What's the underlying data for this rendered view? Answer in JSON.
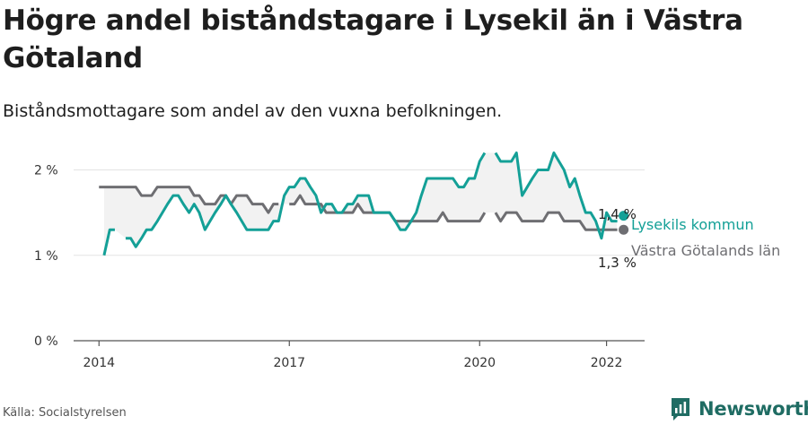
{
  "title": "Högre andel biståndstagare i Lysekil än i Västra Götaland",
  "subtitle": "Biståndsmottagare som andel av den vuxna befolkningen.",
  "source": "Källa: Socialstyrelsen",
  "brand": {
    "name": "Newsworthy",
    "color": "#1f6c63"
  },
  "chart_data": {
    "type": "line",
    "x_ticks": [
      {
        "x": 2014.0,
        "label": "2014"
      },
      {
        "x": 2017.0,
        "label": "2017"
      },
      {
        "x": 2020.0,
        "label": "2020"
      },
      {
        "x": 2022.0,
        "label": "2022"
      }
    ],
    "y_ticks": [
      {
        "y": 0,
        "label": "0 %"
      },
      {
        "y": 1,
        "label": "1 %"
      },
      {
        "y": 2,
        "label": "2 %"
      }
    ],
    "xlim": [
      2013.6,
      2022.6
    ],
    "ylim": [
      0,
      2.1
    ],
    "grid": true,
    "shade_between_series": true,
    "series": [
      {
        "name": "Lysekils kommun",
        "color": "#14a097",
        "end_label": "1,4 %",
        "segments": [
          [
            [
              2014.08,
              1.0
            ],
            [
              2014.17,
              1.3
            ],
            [
              2014.25,
              1.3
            ]
          ],
          [
            [
              2014.42,
              1.2
            ],
            [
              2014.5,
              1.2
            ],
            [
              2014.58,
              1.1
            ],
            [
              2014.67,
              1.2
            ],
            [
              2014.75,
              1.3
            ],
            [
              2014.83,
              1.3
            ],
            [
              2014.92,
              1.4
            ],
            [
              2015.0,
              1.5
            ],
            [
              2015.08,
              1.6
            ],
            [
              2015.17,
              1.7
            ],
            [
              2015.25,
              1.7
            ],
            [
              2015.33,
              1.6
            ],
            [
              2015.42,
              1.5
            ],
            [
              2015.5,
              1.6
            ],
            [
              2015.58,
              1.5
            ],
            [
              2015.67,
              1.3
            ],
            [
              2015.75,
              1.4
            ],
            [
              2015.83,
              1.5
            ],
            [
              2015.92,
              1.6
            ],
            [
              2016.0,
              1.7
            ],
            [
              2016.08,
              1.6
            ],
            [
              2016.17,
              1.5
            ],
            [
              2016.25,
              1.4
            ],
            [
              2016.33,
              1.3
            ],
            [
              2016.42,
              1.3
            ],
            [
              2016.5,
              1.3
            ],
            [
              2016.58,
              1.3
            ],
            [
              2016.67,
              1.3
            ],
            [
              2016.75,
              1.4
            ],
            [
              2016.83,
              1.4
            ],
            [
              2016.92,
              1.7
            ],
            [
              2017.0,
              1.8
            ],
            [
              2017.08,
              1.8
            ],
            [
              2017.17,
              1.9
            ],
            [
              2017.25,
              1.9
            ],
            [
              2017.33,
              1.8
            ],
            [
              2017.42,
              1.7
            ],
            [
              2017.5,
              1.5
            ],
            [
              2017.58,
              1.6
            ],
            [
              2017.67,
              1.6
            ],
            [
              2017.75,
              1.5
            ],
            [
              2017.83,
              1.5
            ],
            [
              2017.92,
              1.6
            ],
            [
              2018.0,
              1.6
            ],
            [
              2018.08,
              1.7
            ],
            [
              2018.17,
              1.7
            ],
            [
              2018.25,
              1.7
            ],
            [
              2018.33,
              1.5
            ],
            [
              2018.42,
              1.5
            ],
            [
              2018.5,
              1.5
            ],
            [
              2018.58,
              1.5
            ],
            [
              2018.67,
              1.4
            ],
            [
              2018.75,
              1.3
            ],
            [
              2018.83,
              1.3
            ],
            [
              2018.92,
              1.4
            ],
            [
              2019.0,
              1.5
            ],
            [
              2019.08,
              1.7
            ],
            [
              2019.17,
              1.9
            ],
            [
              2019.25,
              1.9
            ],
            [
              2019.33,
              1.9
            ],
            [
              2019.42,
              1.9
            ],
            [
              2019.5,
              1.9
            ],
            [
              2019.58,
              1.9
            ],
            [
              2019.67,
              1.8
            ],
            [
              2019.75,
              1.8
            ],
            [
              2019.83,
              1.9
            ],
            [
              2019.92,
              1.9
            ],
            [
              2020.0,
              2.1
            ],
            [
              2020.08,
              2.2
            ]
          ],
          [
            [
              2020.25,
              2.2
            ],
            [
              2020.33,
              2.1
            ],
            [
              2020.42,
              2.1
            ],
            [
              2020.5,
              2.1
            ],
            [
              2020.58,
              2.2
            ],
            [
              2020.67,
              1.7
            ],
            [
              2020.75,
              1.8
            ],
            [
              2020.83,
              1.9
            ],
            [
              2020.92,
              2.0
            ],
            [
              2021.0,
              2.0
            ],
            [
              2021.08,
              2.0
            ],
            [
              2021.17,
              2.2
            ],
            [
              2021.25,
              2.1
            ],
            [
              2021.33,
              2.0
            ],
            [
              2021.42,
              1.8
            ],
            [
              2021.5,
              1.9
            ],
            [
              2021.58,
              1.7
            ],
            [
              2021.67,
              1.5
            ],
            [
              2021.75,
              1.5
            ],
            [
              2021.83,
              1.4
            ],
            [
              2021.92,
              1.2
            ],
            [
              2022.0,
              1.5
            ],
            [
              2022.08,
              1.4
            ],
            [
              2022.17,
              1.4
            ]
          ]
        ]
      },
      {
        "name": "Västra Götalands län",
        "color": "#6e6e72",
        "end_label": "1,3 %",
        "segments": [
          [
            [
              2014.0,
              1.8
            ],
            [
              2014.08,
              1.8
            ],
            [
              2014.17,
              1.8
            ],
            [
              2014.25,
              1.8
            ],
            [
              2014.33,
              1.8
            ],
            [
              2014.42,
              1.8
            ],
            [
              2014.5,
              1.8
            ],
            [
              2014.58,
              1.8
            ],
            [
              2014.67,
              1.7
            ],
            [
              2014.75,
              1.7
            ],
            [
              2014.83,
              1.7
            ],
            [
              2014.92,
              1.8
            ],
            [
              2015.0,
              1.8
            ],
            [
              2015.08,
              1.8
            ],
            [
              2015.17,
              1.8
            ],
            [
              2015.25,
              1.8
            ],
            [
              2015.33,
              1.8
            ],
            [
              2015.42,
              1.8
            ],
            [
              2015.5,
              1.7
            ],
            [
              2015.58,
              1.7
            ],
            [
              2015.67,
              1.6
            ],
            [
              2015.75,
              1.6
            ],
            [
              2015.83,
              1.6
            ],
            [
              2015.92,
              1.7
            ],
            [
              2016.0,
              1.7
            ],
            [
              2016.08,
              1.6
            ],
            [
              2016.17,
              1.7
            ],
            [
              2016.25,
              1.7
            ],
            [
              2016.33,
              1.7
            ],
            [
              2016.42,
              1.6
            ],
            [
              2016.5,
              1.6
            ],
            [
              2016.58,
              1.6
            ],
            [
              2016.67,
              1.5
            ],
            [
              2016.75,
              1.6
            ],
            [
              2016.83,
              1.6
            ]
          ],
          [
            [
              2017.0,
              1.6
            ],
            [
              2017.08,
              1.6
            ],
            [
              2017.17,
              1.7
            ],
            [
              2017.25,
              1.6
            ],
            [
              2017.33,
              1.6
            ],
            [
              2017.42,
              1.6
            ],
            [
              2017.5,
              1.6
            ],
            [
              2017.58,
              1.5
            ],
            [
              2017.67,
              1.5
            ],
            [
              2017.75,
              1.5
            ],
            [
              2017.83,
              1.5
            ],
            [
              2017.92,
              1.5
            ],
            [
              2018.0,
              1.5
            ],
            [
              2018.08,
              1.6
            ],
            [
              2018.17,
              1.5
            ],
            [
              2018.25,
              1.5
            ],
            [
              2018.33,
              1.5
            ],
            [
              2018.42,
              1.5
            ],
            [
              2018.5,
              1.5
            ],
            [
              2018.58,
              1.5
            ],
            [
              2018.67,
              1.4
            ],
            [
              2018.75,
              1.4
            ],
            [
              2018.83,
              1.4
            ],
            [
              2018.92,
              1.4
            ],
            [
              2019.0,
              1.4
            ],
            [
              2019.08,
              1.4
            ],
            [
              2019.17,
              1.4
            ],
            [
              2019.25,
              1.4
            ],
            [
              2019.33,
              1.4
            ],
            [
              2019.42,
              1.5
            ],
            [
              2019.5,
              1.4
            ],
            [
              2019.58,
              1.4
            ],
            [
              2019.67,
              1.4
            ],
            [
              2019.75,
              1.4
            ],
            [
              2019.83,
              1.4
            ],
            [
              2019.92,
              1.4
            ],
            [
              2020.0,
              1.4
            ],
            [
              2020.08,
              1.5
            ]
          ],
          [
            [
              2020.25,
              1.5
            ],
            [
              2020.33,
              1.4
            ],
            [
              2020.42,
              1.5
            ],
            [
              2020.5,
              1.5
            ],
            [
              2020.58,
              1.5
            ],
            [
              2020.67,
              1.4
            ],
            [
              2020.75,
              1.4
            ],
            [
              2020.83,
              1.4
            ],
            [
              2020.92,
              1.4
            ],
            [
              2021.0,
              1.4
            ],
            [
              2021.08,
              1.5
            ],
            [
              2021.17,
              1.5
            ],
            [
              2021.25,
              1.5
            ],
            [
              2021.33,
              1.4
            ],
            [
              2021.42,
              1.4
            ],
            [
              2021.5,
              1.4
            ],
            [
              2021.58,
              1.4
            ],
            [
              2021.67,
              1.3
            ],
            [
              2021.75,
              1.3
            ],
            [
              2021.83,
              1.3
            ],
            [
              2021.92,
              1.3
            ],
            [
              2022.0,
              1.3
            ],
            [
              2022.08,
              1.3
            ],
            [
              2022.17,
              1.3
            ]
          ]
        ]
      }
    ]
  }
}
